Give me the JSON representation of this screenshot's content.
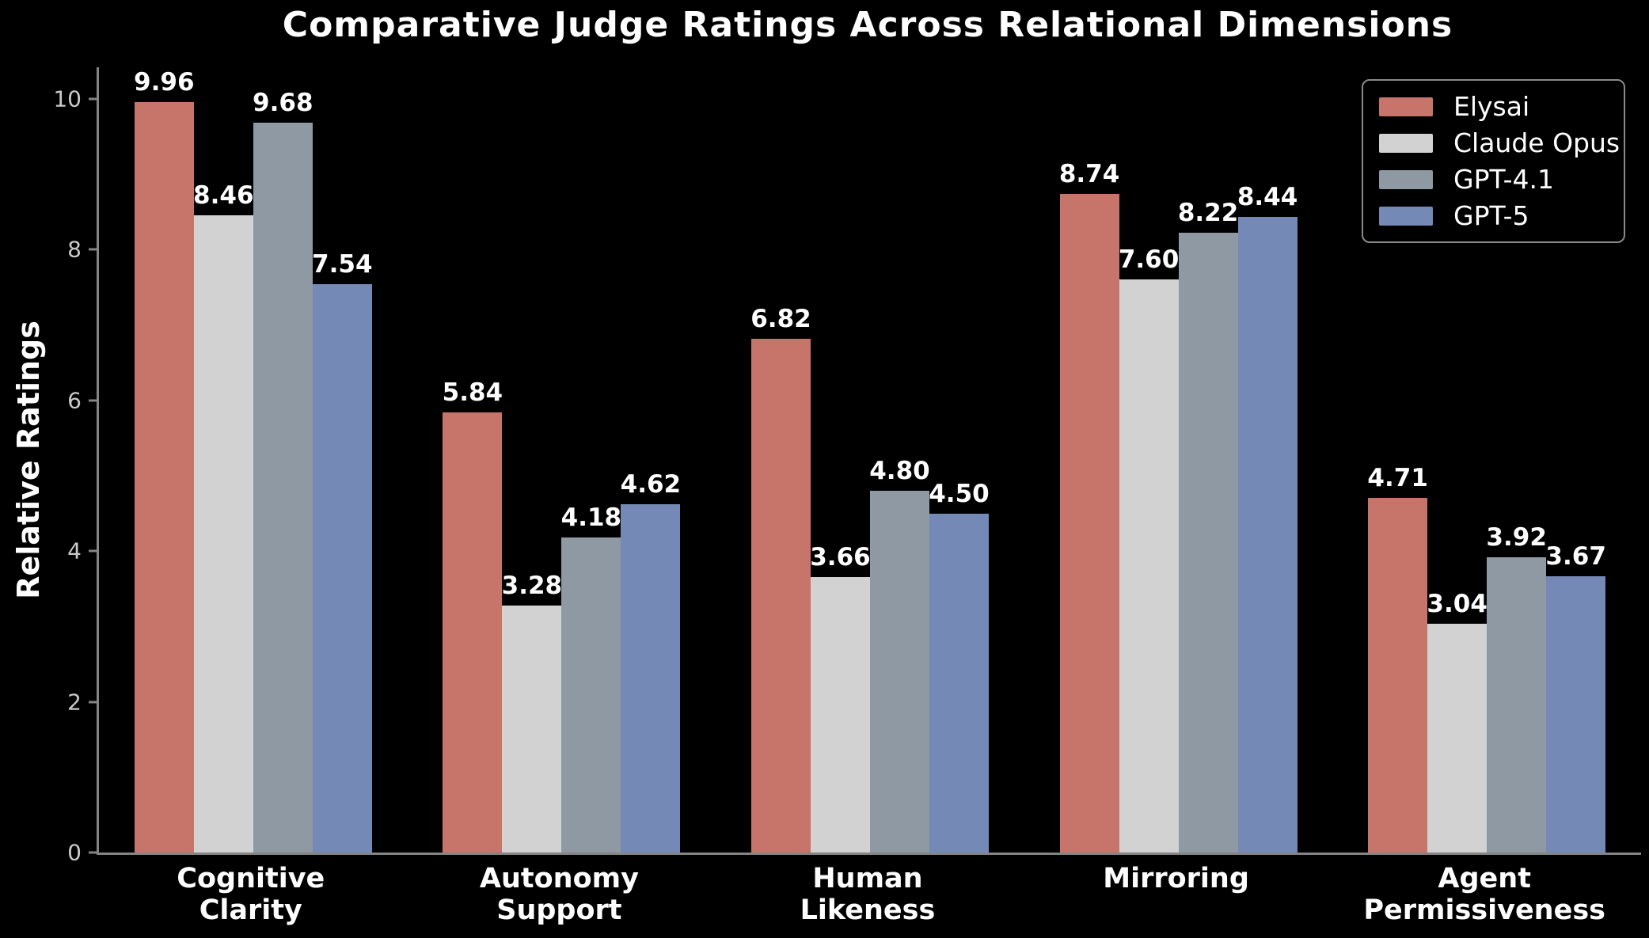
{
  "chart_data": {
    "type": "bar",
    "title": "Comparative Judge Ratings Across Relational Dimensions",
    "xlabel": "",
    "ylabel": "Relative Ratings",
    "categories": [
      "Cognitive\nClarity",
      "Autonomy\nSupport",
      "Human\nLikeness",
      "Mirroring",
      "Agent\nPermissiveness"
    ],
    "series": [
      {
        "name": "Elysai",
        "color": "#c7756a",
        "values": [
          9.96,
          5.84,
          6.82,
          8.74,
          4.71
        ]
      },
      {
        "name": "Claude Opus",
        "color": "#d2d2d2",
        "values": [
          8.46,
          3.28,
          3.66,
          7.6,
          3.04
        ]
      },
      {
        "name": "GPT-4.1",
        "color": "#8e99a4",
        "values": [
          9.68,
          4.18,
          4.8,
          8.22,
          3.92
        ]
      },
      {
        "name": "GPT-5",
        "color": "#7589b7",
        "values": [
          7.54,
          4.62,
          4.5,
          8.44,
          3.67
        ]
      }
    ],
    "ylim": [
      0,
      10.42
    ],
    "yticks": [
      0,
      2,
      4,
      6,
      8,
      10
    ],
    "grid": false,
    "legend_position": "upper right",
    "value_labels": true,
    "value_label_decimals": 2,
    "background_color": "#000000",
    "text_color": "#ffffff",
    "tick_label_color": "#c9c9c9",
    "spine_color": "#848484"
  }
}
